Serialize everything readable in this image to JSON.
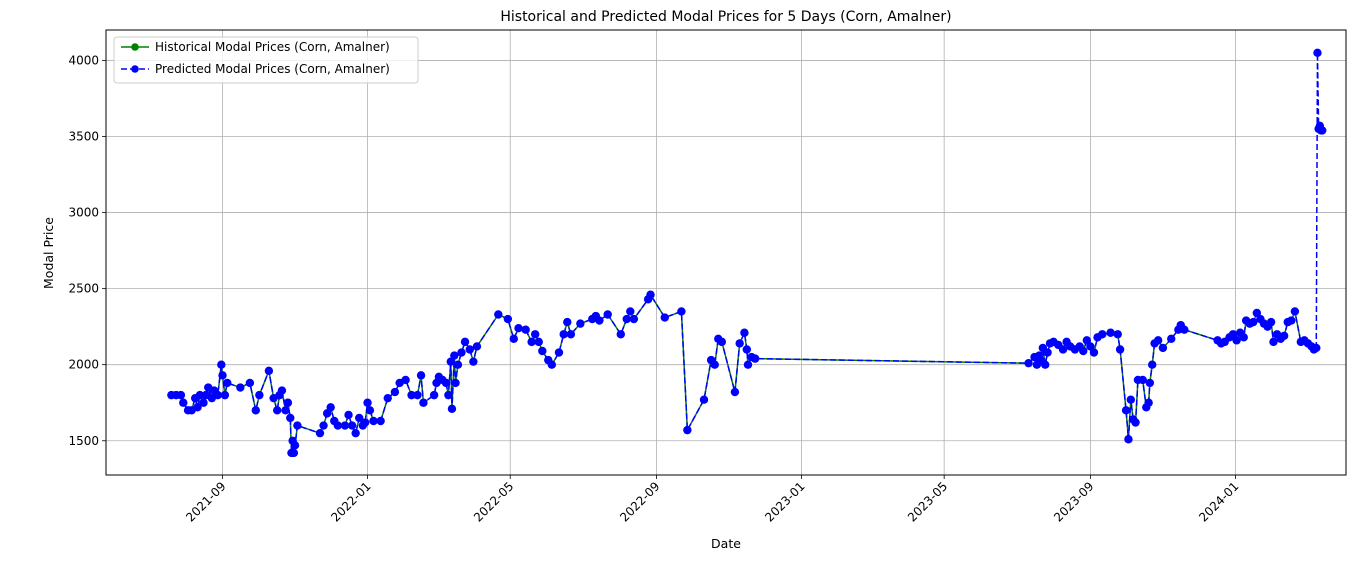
{
  "chart_data": {
    "type": "line",
    "title": "Historical and Predicted Modal Prices for 5 Days (Corn, Amalner)",
    "xlabel": "Date",
    "ylabel": "Modal Price",
    "x_ticks": [
      "2021-09",
      "2022-01",
      "2022-05",
      "2022-09",
      "2023-01",
      "2023-05",
      "2023-09",
      "2024-01"
    ],
    "y_ticks": [
      1500,
      2000,
      2500,
      3000,
      3500,
      4000
    ],
    "xlim": [
      "2021-05-26",
      "2024-04-03"
    ],
    "ylim": [
      1275,
      4200
    ],
    "grid": true,
    "legend_position": "top-left",
    "series": [
      {
        "name": "Historical Modal Prices (Corn, Amalner)",
        "color": "#008000",
        "linestyle": "solid",
        "marker": "circle",
        "points": [
          [
            "2021-07-20",
            1800
          ],
          [
            "2021-07-24",
            1800
          ],
          [
            "2021-07-28",
            1800
          ],
          [
            "2021-07-30",
            1750
          ],
          [
            "2021-08-03",
            1700
          ],
          [
            "2021-08-06",
            1700
          ],
          [
            "2021-08-09",
            1780
          ],
          [
            "2021-08-11",
            1720
          ],
          [
            "2021-08-13",
            1800
          ],
          [
            "2021-08-16",
            1750
          ],
          [
            "2021-08-18",
            1800
          ],
          [
            "2021-08-20",
            1850
          ],
          [
            "2021-08-23",
            1780
          ],
          [
            "2021-08-25",
            1830
          ],
          [
            "2021-08-28",
            1800
          ],
          [
            "2021-08-31",
            2000
          ],
          [
            "2021-09-01",
            1930
          ],
          [
            "2021-09-03",
            1800
          ],
          [
            "2021-09-05",
            1880
          ],
          [
            "2021-09-16",
            1850
          ],
          [
            "2021-09-24",
            1880
          ],
          [
            "2021-09-29",
            1700
          ],
          [
            "2021-10-02",
            1800
          ],
          [
            "2021-10-10",
            1960
          ],
          [
            "2021-10-14",
            1780
          ],
          [
            "2021-10-17",
            1700
          ],
          [
            "2021-10-19",
            1800
          ],
          [
            "2021-10-21",
            1830
          ],
          [
            "2021-10-24",
            1700
          ],
          [
            "2021-10-26",
            1750
          ],
          [
            "2021-10-28",
            1650
          ],
          [
            "2021-10-29",
            1420
          ],
          [
            "2021-10-30",
            1500
          ],
          [
            "2021-10-31",
            1420
          ],
          [
            "2021-11-01",
            1470
          ],
          [
            "2021-11-03",
            1600
          ],
          [
            "2021-11-22",
            1550
          ],
          [
            "2021-11-25",
            1600
          ],
          [
            "2021-11-28",
            1680
          ],
          [
            "2021-12-01",
            1720
          ],
          [
            "2021-12-04",
            1630
          ],
          [
            "2021-12-07",
            1600
          ],
          [
            "2021-12-13",
            1600
          ],
          [
            "2021-12-16",
            1670
          ],
          [
            "2021-12-19",
            1600
          ],
          [
            "2021-12-22",
            1550
          ],
          [
            "2021-12-25",
            1650
          ],
          [
            "2021-12-28",
            1600
          ],
          [
            "2021-12-30",
            1620
          ],
          [
            "2022-01-01",
            1750
          ],
          [
            "2022-01-03",
            1700
          ],
          [
            "2022-01-06",
            1630
          ],
          [
            "2022-01-12",
            1630
          ],
          [
            "2022-01-18",
            1780
          ],
          [
            "2022-01-24",
            1820
          ],
          [
            "2022-01-28",
            1880
          ],
          [
            "2022-02-02",
            1900
          ],
          [
            "2022-02-07",
            1800
          ],
          [
            "2022-02-12",
            1800
          ],
          [
            "2022-02-15",
            1930
          ],
          [
            "2022-02-17",
            1750
          ],
          [
            "2022-02-26",
            1800
          ],
          [
            "2022-02-28",
            1880
          ],
          [
            "2022-03-02",
            1920
          ],
          [
            "2022-03-05",
            1900
          ],
          [
            "2022-03-08",
            1880
          ],
          [
            "2022-03-10",
            1800
          ],
          [
            "2022-03-12",
            2020
          ],
          [
            "2022-03-13",
            1710
          ],
          [
            "2022-03-15",
            2060
          ],
          [
            "2022-03-16",
            1880
          ],
          [
            "2022-03-18",
            2000
          ],
          [
            "2022-03-21",
            2080
          ],
          [
            "2022-03-24",
            2150
          ],
          [
            "2022-03-28",
            2100
          ],
          [
            "2022-03-31",
            2020
          ],
          [
            "2022-04-03",
            2120
          ],
          [
            "2022-04-21",
            2330
          ],
          [
            "2022-04-29",
            2300
          ],
          [
            "2022-05-04",
            2170
          ],
          [
            "2022-05-08",
            2240
          ],
          [
            "2022-05-14",
            2230
          ],
          [
            "2022-05-19",
            2150
          ],
          [
            "2022-05-22",
            2200
          ],
          [
            "2022-05-25",
            2150
          ],
          [
            "2022-05-28",
            2090
          ],
          [
            "2022-06-02",
            2030
          ],
          [
            "2022-06-05",
            2000
          ],
          [
            "2022-06-11",
            2080
          ],
          [
            "2022-06-15",
            2200
          ],
          [
            "2022-06-18",
            2280
          ],
          [
            "2022-06-21",
            2200
          ],
          [
            "2022-06-29",
            2270
          ],
          [
            "2022-07-09",
            2300
          ],
          [
            "2022-07-12",
            2320
          ],
          [
            "2022-07-15",
            2290
          ],
          [
            "2022-07-22",
            2330
          ],
          [
            "2022-08-02",
            2200
          ],
          [
            "2022-08-07",
            2300
          ],
          [
            "2022-08-10",
            2350
          ],
          [
            "2022-08-13",
            2300
          ],
          [
            "2022-08-25",
            2430
          ],
          [
            "2022-08-27",
            2460
          ],
          [
            "2022-09-08",
            2310
          ],
          [
            "2022-09-22",
            2350
          ],
          [
            "2022-09-27",
            1570
          ],
          [
            "2022-10-11",
            1770
          ],
          [
            "2022-10-17",
            2030
          ],
          [
            "2022-10-20",
            2000
          ],
          [
            "2022-10-23",
            2170
          ],
          [
            "2022-10-26",
            2150
          ],
          [
            "2022-11-06",
            1820
          ],
          [
            "2022-11-10",
            2140
          ],
          [
            "2022-11-14",
            2210
          ],
          [
            "2022-11-16",
            2100
          ],
          [
            "2022-11-17",
            2000
          ],
          [
            "2022-11-20",
            2050
          ],
          [
            "2022-11-23",
            2040
          ],
          [
            "2023-07-11",
            2010
          ],
          [
            "2023-07-16",
            2050
          ],
          [
            "2023-07-18",
            2000
          ],
          [
            "2023-07-20",
            2060
          ],
          [
            "2023-07-21",
            2030
          ],
          [
            "2023-07-23",
            2110
          ],
          [
            "2023-07-25",
            2000
          ],
          [
            "2023-07-27",
            2080
          ],
          [
            "2023-07-29",
            2140
          ],
          [
            "2023-08-01",
            2150
          ],
          [
            "2023-08-05",
            2130
          ],
          [
            "2023-08-09",
            2100
          ],
          [
            "2023-08-12",
            2150
          ],
          [
            "2023-08-15",
            2120
          ],
          [
            "2023-08-19",
            2100
          ],
          [
            "2023-08-23",
            2120
          ],
          [
            "2023-08-26",
            2090
          ],
          [
            "2023-08-29",
            2160
          ],
          [
            "2023-09-01",
            2120
          ],
          [
            "2023-09-04",
            2080
          ],
          [
            "2023-09-07",
            2180
          ],
          [
            "2023-09-11",
            2200
          ],
          [
            "2023-09-18",
            2210
          ],
          [
            "2023-09-24",
            2200
          ],
          [
            "2023-09-26",
            2100
          ],
          [
            "2023-10-01",
            1700
          ],
          [
            "2023-10-03",
            1510
          ],
          [
            "2023-10-05",
            1770
          ],
          [
            "2023-10-07",
            1640
          ],
          [
            "2023-10-09",
            1620
          ],
          [
            "2023-10-11",
            1900
          ],
          [
            "2023-10-15",
            1900
          ],
          [
            "2023-10-18",
            1720
          ],
          [
            "2023-10-20",
            1750
          ],
          [
            "2023-10-21",
            1880
          ],
          [
            "2023-10-23",
            2000
          ],
          [
            "2023-10-25",
            2140
          ],
          [
            "2023-10-28",
            2160
          ],
          [
            "2023-11-01",
            2110
          ],
          [
            "2023-11-08",
            2170
          ],
          [
            "2023-11-14",
            2230
          ],
          [
            "2023-11-16",
            2260
          ],
          [
            "2023-11-19",
            2230
          ],
          [
            "2023-12-17",
            2160
          ],
          [
            "2023-12-20",
            2140
          ],
          [
            "2023-12-23",
            2150
          ],
          [
            "2023-12-27",
            2180
          ],
          [
            "2023-12-30",
            2200
          ],
          [
            "2024-01-02",
            2160
          ],
          [
            "2024-01-05",
            2210
          ],
          [
            "2024-01-08",
            2180
          ],
          [
            "2024-01-10",
            2290
          ],
          [
            "2024-01-13",
            2270
          ],
          [
            "2024-01-16",
            2280
          ],
          [
            "2024-01-19",
            2340
          ],
          [
            "2024-01-22",
            2300
          ],
          [
            "2024-01-25",
            2270
          ],
          [
            "2024-01-28",
            2250
          ],
          [
            "2024-01-31",
            2280
          ],
          [
            "2024-02-02",
            2150
          ],
          [
            "2024-02-05",
            2200
          ],
          [
            "2024-02-08",
            2170
          ],
          [
            "2024-02-11",
            2190
          ],
          [
            "2024-02-14",
            2280
          ],
          [
            "2024-02-17",
            2290
          ],
          [
            "2024-02-20",
            2350
          ],
          [
            "2024-02-25",
            2150
          ],
          [
            "2024-02-28",
            2160
          ],
          [
            "2024-03-02",
            2140
          ],
          [
            "2024-03-05",
            2120
          ],
          [
            "2024-03-07",
            2100
          ],
          [
            "2024-03-09",
            2110
          ]
        ]
      },
      {
        "name": "Predicted Modal Prices (Corn, Amalner)",
        "color": "#0000ff",
        "linestyle": "dashed",
        "marker": "circle",
        "continues_series": 0,
        "points": [
          [
            "2024-03-10",
            4050
          ],
          [
            "2024-03-11",
            3550
          ],
          [
            "2024-03-12",
            3570
          ],
          [
            "2024-03-13",
            3540
          ],
          [
            "2024-03-14",
            3540
          ]
        ]
      }
    ]
  }
}
